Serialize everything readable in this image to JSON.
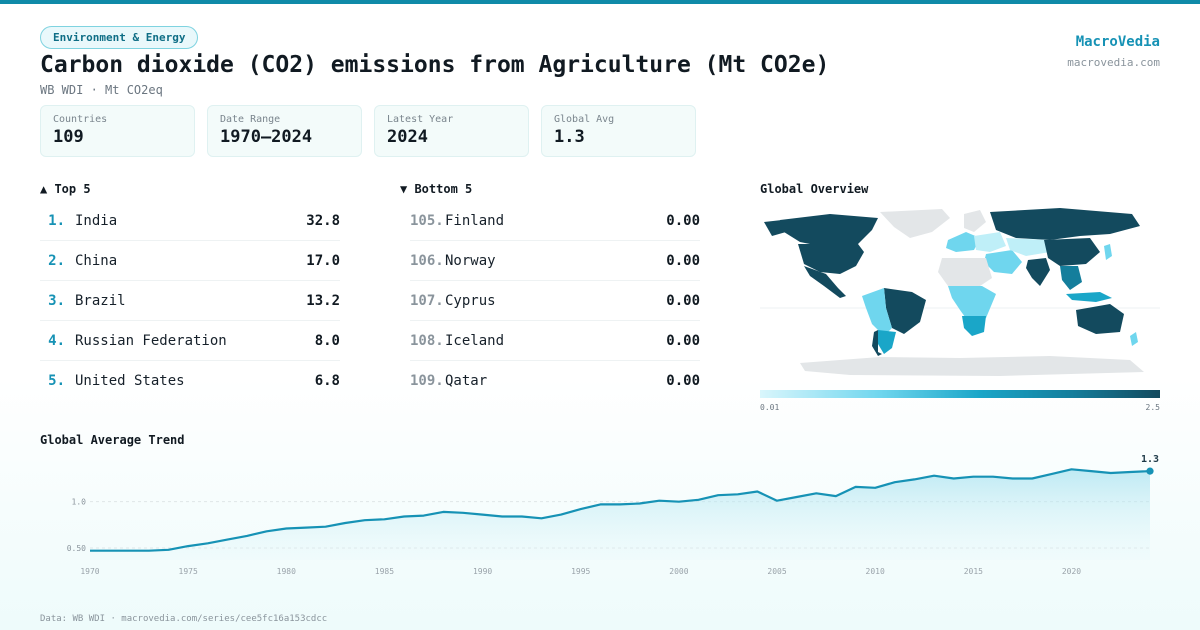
{
  "category_pill": "Environment & Energy",
  "title": "Carbon dioxide (CO2) emissions from Agriculture (Mt CO2e)",
  "subtitle": "WB WDI · Mt CO2eq",
  "brand": {
    "name": "MacroVedia",
    "url": "macrovedia.com"
  },
  "stats": [
    {
      "label": "Countries",
      "value": "109"
    },
    {
      "label": "Date Range",
      "value": "1970–2024"
    },
    {
      "label": "Latest Year",
      "value": "2024"
    },
    {
      "label": "Global Avg",
      "value": "1.3"
    }
  ],
  "top": {
    "heading": "▲ Top 5",
    "rows": [
      {
        "rank": "1.",
        "name": "India",
        "value": "32.8"
      },
      {
        "rank": "2.",
        "name": "China",
        "value": "17.0"
      },
      {
        "rank": "3.",
        "name": "Brazil",
        "value": "13.2"
      },
      {
        "rank": "4.",
        "name": "Russian Federation",
        "value": "8.0"
      },
      {
        "rank": "5.",
        "name": "United States",
        "value": "6.8"
      }
    ]
  },
  "bottom": {
    "heading": "▼ Bottom 5",
    "rows": [
      {
        "rank": "105.",
        "name": "Finland",
        "value": "0.00"
      },
      {
        "rank": "106.",
        "name": "Norway",
        "value": "0.00"
      },
      {
        "rank": "107.",
        "name": "Cyprus",
        "value": "0.00"
      },
      {
        "rank": "108.",
        "name": "Iceland",
        "value": "0.00"
      },
      {
        "rank": "109.",
        "name": "Qatar",
        "value": "0.00"
      }
    ]
  },
  "map": {
    "heading": "Global Overview",
    "legend_min": "0.01",
    "legend_max": "2.5",
    "colors": {
      "low": "#d9f6fc",
      "mid": "#1aa6c8",
      "high": "#134a5e",
      "nodata": "#e3e6e8"
    }
  },
  "chart_data": {
    "type": "area",
    "title": "Global Average Trend",
    "x": [
      1970,
      1971,
      1972,
      1973,
      1974,
      1975,
      1976,
      1977,
      1978,
      1979,
      1980,
      1981,
      1982,
      1983,
      1984,
      1985,
      1986,
      1987,
      1988,
      1989,
      1990,
      1991,
      1992,
      1993,
      1994,
      1995,
      1996,
      1997,
      1998,
      1999,
      2000,
      2001,
      2002,
      2003,
      2004,
      2005,
      2006,
      2007,
      2008,
      2009,
      2010,
      2011,
      2012,
      2013,
      2014,
      2015,
      2016,
      2017,
      2018,
      2019,
      2020,
      2021,
      2022,
      2023,
      2024
    ],
    "values": [
      0.47,
      0.47,
      0.47,
      0.47,
      0.48,
      0.52,
      0.55,
      0.59,
      0.63,
      0.68,
      0.71,
      0.72,
      0.73,
      0.77,
      0.8,
      0.81,
      0.84,
      0.85,
      0.89,
      0.88,
      0.86,
      0.84,
      0.84,
      0.82,
      0.86,
      0.92,
      0.97,
      0.97,
      0.98,
      1.01,
      1.0,
      1.02,
      1.07,
      1.08,
      1.11,
      1.01,
      1.05,
      1.09,
      1.06,
      1.16,
      1.15,
      1.21,
      1.24,
      1.28,
      1.25,
      1.27,
      1.27,
      1.25,
      1.25,
      1.3,
      1.35,
      1.33,
      1.31,
      1.32,
      1.33
    ],
    "end_label": "1.3",
    "yticks": [
      0.5,
      1.0
    ],
    "ytick_labels": [
      "0.50",
      "1.0"
    ],
    "xticks": [
      1970,
      1975,
      1980,
      1985,
      1990,
      1995,
      2000,
      2005,
      2010,
      2015,
      2020
    ],
    "ylim": [
      0.37,
      1.45
    ],
    "colors": {
      "line": "#1692b5",
      "fill": "#bfeaf2"
    }
  },
  "footer": "Data: WB WDI · macrovedia.com/series/cee5fc16a153cdcc"
}
